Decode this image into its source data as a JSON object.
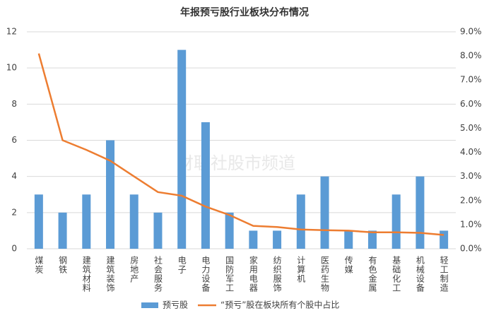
{
  "chart_data": {
    "type": "bar_line",
    "title": "年报预亏股行业板块分布情况",
    "watermark": "财联社股市频道",
    "categories": [
      "煤炭",
      "钢铁",
      "建筑材料",
      "建筑装饰",
      "房地产",
      "社会服务",
      "电子",
      "电力设备",
      "国防军工",
      "家用电器",
      "纺织服饰",
      "计算机",
      "医药生物",
      "传媒",
      "有色金属",
      "基础化工",
      "机械设备",
      "轻工制造"
    ],
    "series": [
      {
        "name": "预亏股",
        "type": "bar",
        "color": "#5b9bd5",
        "values": [
          3,
          2,
          3,
          6,
          3,
          2,
          11,
          7,
          2,
          1,
          1,
          3,
          4,
          1,
          1,
          3,
          4,
          1
        ]
      },
      {
        "name": "“预亏”股在板块所有个股中占比",
        "type": "line",
        "axis": "y2",
        "color": "#ed7d31",
        "values": [
          8.1,
          4.5,
          4.1,
          3.65,
          3.0,
          2.35,
          2.2,
          1.75,
          1.4,
          0.95,
          0.9,
          0.8,
          0.77,
          0.75,
          0.68,
          0.68,
          0.66,
          0.57
        ]
      }
    ],
    "ylim": [
      0,
      12
    ],
    "yticks": [
      0,
      2,
      4,
      6,
      8,
      10,
      12
    ],
    "y2lim": [
      0,
      9
    ],
    "y2ticks": [
      {
        "value": 0,
        "label": "0.0%"
      },
      {
        "value": 1,
        "label": "1.0%"
      },
      {
        "value": 2,
        "label": "2.0%"
      },
      {
        "value": 3,
        "label": "3.0%"
      },
      {
        "value": 4,
        "label": "4.0%"
      },
      {
        "value": 5,
        "label": "5.0%"
      },
      {
        "value": 6,
        "label": "6.0%"
      },
      {
        "value": 7,
        "label": "7.0%"
      },
      {
        "value": 8,
        "label": "8.0%"
      },
      {
        "value": 9,
        "label": "9.0%"
      }
    ],
    "grid": true,
    "legend": "bottom"
  }
}
